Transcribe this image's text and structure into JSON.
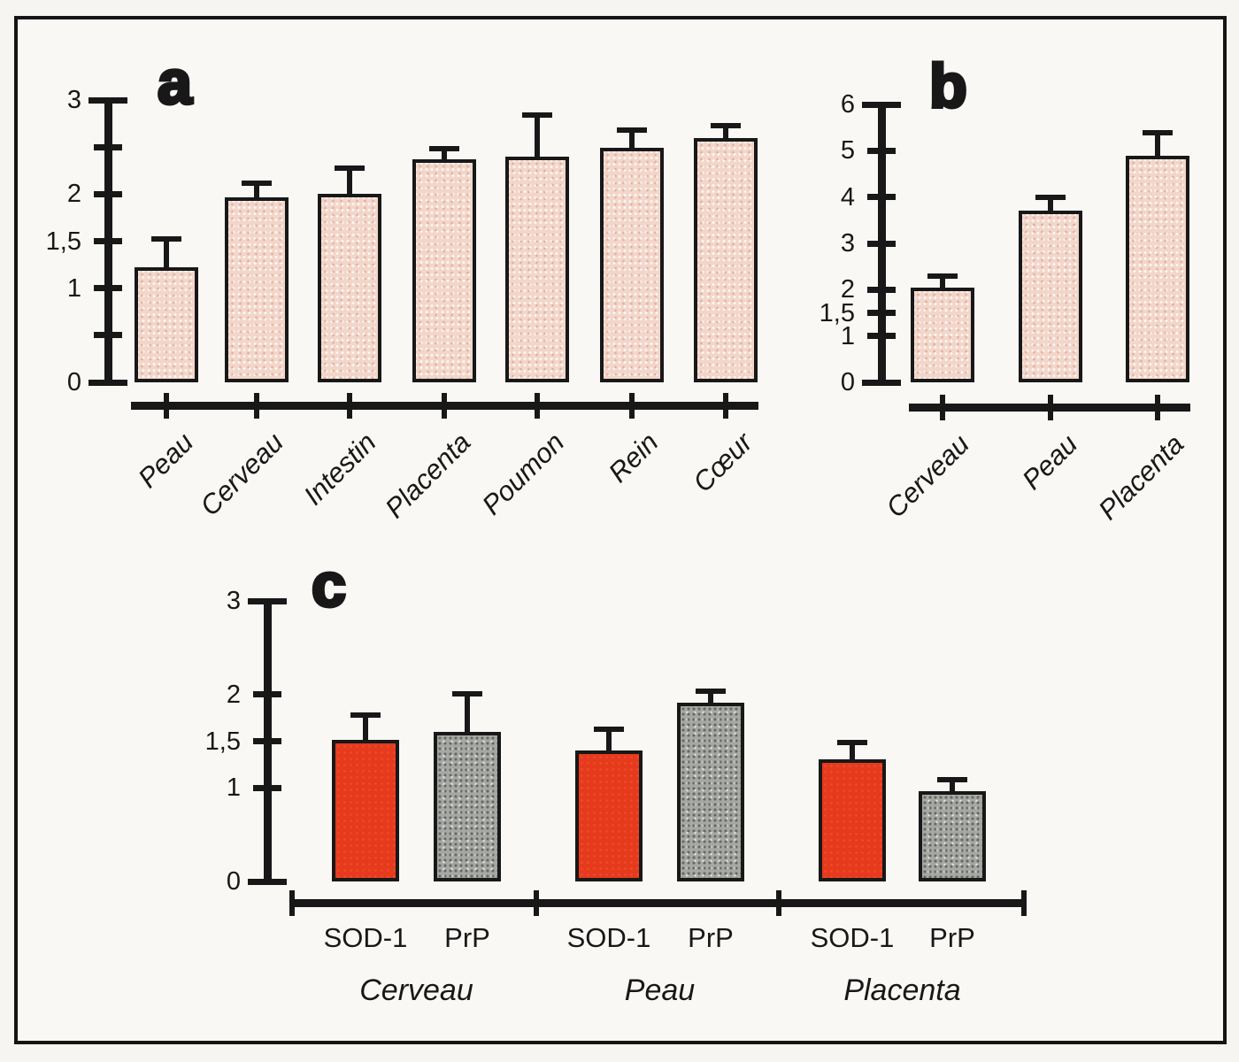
{
  "colors": {
    "ink": "#181818",
    "bar_pink": "#f2d6ca",
    "bar_red": "#e63a1d",
    "bar_gray": "#a6a8a4",
    "background": "#faf8f5"
  },
  "chart_data": [
    {
      "panel_label": "a",
      "type": "bar",
      "title": "",
      "xlabel": "",
      "ylabel": "",
      "ylim": [
        0,
        3
      ],
      "yticks": [
        3,
        2.5,
        2,
        1.5,
        1,
        0.5,
        0
      ],
      "ytick_labels": [
        "3",
        "",
        "2",
        "1,5",
        "1",
        "",
        "0"
      ],
      "categories": [
        "Peau",
        "Cerveau",
        "Intestin",
        "Placenta",
        "Poumon",
        "Rein",
        "Cœur"
      ],
      "values": [
        1.22,
        1.97,
        2.0,
        2.37,
        2.4,
        2.49,
        2.6
      ],
      "errors_up": [
        0.3,
        0.15,
        0.28,
        0.11,
        0.44,
        0.19,
        0.13
      ],
      "bar_fill": "pink-stipple",
      "grid": false,
      "legend": "none"
    },
    {
      "panel_label": "b",
      "type": "bar",
      "title": "",
      "xlabel": "",
      "ylabel": "",
      "ylim": [
        0,
        6
      ],
      "yticks": [
        6,
        5,
        4,
        3,
        2,
        1.5,
        1,
        0
      ],
      "ytick_labels": [
        "6",
        "5",
        "4",
        "3",
        "2",
        "1,5",
        "1",
        "0"
      ],
      "categories": [
        "Cerveau",
        "Peau",
        "Placenta"
      ],
      "values": [
        2.05,
        3.7,
        4.9
      ],
      "errors_up": [
        0.25,
        0.3,
        0.48
      ],
      "bar_fill": "pink-stipple",
      "grid": false,
      "legend": "none"
    },
    {
      "panel_label": "c",
      "type": "grouped-bar",
      "title": "",
      "xlabel": "",
      "ylabel": "",
      "ylim": [
        0,
        3
      ],
      "yticks": [
        3,
        2,
        1.5,
        1,
        0
      ],
      "ytick_labels": [
        "3",
        "2",
        "1,5",
        "1",
        "0"
      ],
      "groups": [
        "Cerveau",
        "Peau",
        "Placenta"
      ],
      "series": [
        {
          "name": "SOD-1",
          "fill": "red",
          "values": [
            1.51,
            1.4,
            1.31
          ],
          "errors_up": [
            0.27,
            0.23,
            0.18
          ]
        },
        {
          "name": "PrP",
          "fill": "gray",
          "values": [
            1.6,
            1.91,
            0.97
          ],
          "errors_up": [
            0.41,
            0.12,
            0.12
          ]
        }
      ],
      "grid": false,
      "legend": "none"
    }
  ]
}
